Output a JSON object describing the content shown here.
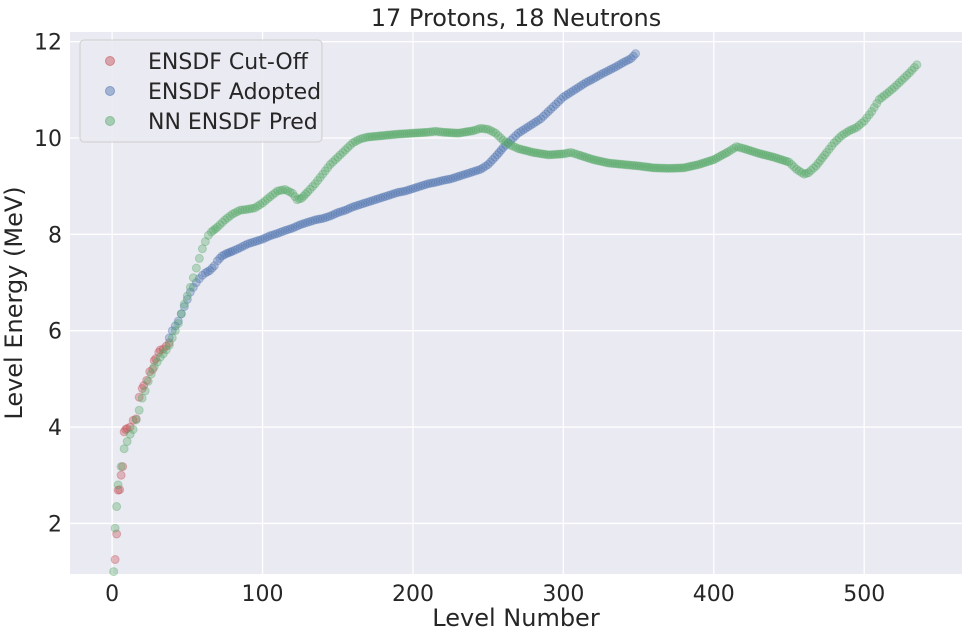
{
  "chart_data": {
    "type": "scatter",
    "title": "17 Protons, 18 Neutrons",
    "xlabel": "Level Number",
    "ylabel": "Level Energy (MeV)",
    "xlim": [
      -28,
      565
    ],
    "ylim": [
      0.95,
      12.2
    ],
    "xticks": [
      0,
      100,
      200,
      300,
      400,
      500
    ],
    "yticks": [
      2,
      4,
      6,
      8,
      10,
      12
    ],
    "grid": true,
    "legend_position": "top-left",
    "background": "#eaeaf2",
    "series": [
      {
        "name": "ENSDF Cut-Off",
        "color": "#c44e52",
        "points": [
          [
            2,
            1.25
          ],
          [
            3,
            1.78
          ],
          [
            4,
            2.69
          ],
          [
            5,
            2.7
          ],
          [
            6,
            3.0
          ],
          [
            7,
            3.18
          ],
          [
            8,
            3.9
          ],
          [
            9,
            3.95
          ],
          [
            10,
            3.97
          ],
          [
            12,
            4.0
          ],
          [
            14,
            4.14
          ],
          [
            16,
            4.17
          ],
          [
            18,
            4.62
          ],
          [
            20,
            4.8
          ],
          [
            21,
            4.86
          ],
          [
            23,
            4.97
          ],
          [
            25,
            5.15
          ],
          [
            27,
            5.2
          ],
          [
            28,
            5.38
          ],
          [
            29,
            5.42
          ],
          [
            31,
            5.55
          ],
          [
            32,
            5.6
          ],
          [
            34,
            5.62
          ],
          [
            36,
            5.68
          ],
          [
            38,
            5.75
          ]
        ]
      },
      {
        "name": "ENSDF Adopted",
        "color": "#4c72b0",
        "points": [
          [
            38,
            5.85
          ],
          [
            40,
            6.0
          ],
          [
            42,
            6.1
          ],
          [
            44,
            6.2
          ],
          [
            46,
            6.35
          ],
          [
            48,
            6.5
          ],
          [
            50,
            6.65
          ],
          [
            52,
            6.8
          ],
          [
            54,
            6.9
          ],
          [
            56,
            7.0
          ],
          [
            58,
            7.08
          ],
          [
            60,
            7.15
          ],
          [
            62,
            7.2
          ],
          [
            65,
            7.25
          ],
          [
            68,
            7.35
          ],
          [
            70,
            7.45
          ],
          [
            73,
            7.55
          ],
          [
            76,
            7.6
          ],
          [
            80,
            7.65
          ],
          [
            85,
            7.72
          ],
          [
            90,
            7.8
          ],
          [
            95,
            7.85
          ],
          [
            100,
            7.9
          ],
          [
            105,
            7.97
          ],
          [
            110,
            8.02
          ],
          [
            115,
            8.08
          ],
          [
            120,
            8.13
          ],
          [
            125,
            8.2
          ],
          [
            130,
            8.25
          ],
          [
            135,
            8.3
          ],
          [
            140,
            8.33
          ],
          [
            145,
            8.38
          ],
          [
            150,
            8.45
          ],
          [
            155,
            8.5
          ],
          [
            160,
            8.57
          ],
          [
            165,
            8.62
          ],
          [
            170,
            8.67
          ],
          [
            175,
            8.72
          ],
          [
            180,
            8.77
          ],
          [
            185,
            8.82
          ],
          [
            190,
            8.87
          ],
          [
            195,
            8.9
          ],
          [
            200,
            8.95
          ],
          [
            205,
            9.0
          ],
          [
            210,
            9.05
          ],
          [
            215,
            9.08
          ],
          [
            220,
            9.12
          ],
          [
            225,
            9.15
          ],
          [
            230,
            9.2
          ],
          [
            235,
            9.25
          ],
          [
            240,
            9.3
          ],
          [
            245,
            9.35
          ],
          [
            250,
            9.45
          ],
          [
            253,
            9.55
          ],
          [
            256,
            9.65
          ],
          [
            260,
            9.8
          ],
          [
            265,
            9.95
          ],
          [
            270,
            10.1
          ],
          [
            275,
            10.2
          ],
          [
            280,
            10.3
          ],
          [
            285,
            10.4
          ],
          [
            290,
            10.55
          ],
          [
            295,
            10.7
          ],
          [
            300,
            10.85
          ],
          [
            305,
            10.95
          ],
          [
            310,
            11.05
          ],
          [
            315,
            11.15
          ],
          [
            320,
            11.23
          ],
          [
            325,
            11.32
          ],
          [
            330,
            11.4
          ],
          [
            335,
            11.48
          ],
          [
            340,
            11.57
          ],
          [
            345,
            11.65
          ],
          [
            348,
            11.75
          ]
        ]
      },
      {
        "name": "NN ENSDF Pred",
        "color": "#55a868",
        "points": [
          [
            1,
            1.0
          ],
          [
            2,
            1.9
          ],
          [
            3,
            2.35
          ],
          [
            4,
            2.8
          ],
          [
            6,
            3.18
          ],
          [
            8,
            3.55
          ],
          [
            10,
            3.7
          ],
          [
            12,
            3.85
          ],
          [
            14,
            3.95
          ],
          [
            16,
            4.15
          ],
          [
            18,
            4.35
          ],
          [
            20,
            4.6
          ],
          [
            22,
            4.75
          ],
          [
            24,
            4.95
          ],
          [
            26,
            5.1
          ],
          [
            28,
            5.25
          ],
          [
            30,
            5.35
          ],
          [
            32,
            5.45
          ],
          [
            34,
            5.52
          ],
          [
            36,
            5.6
          ],
          [
            38,
            5.7
          ],
          [
            40,
            5.85
          ],
          [
            42,
            6.0
          ],
          [
            44,
            6.15
          ],
          [
            46,
            6.35
          ],
          [
            48,
            6.55
          ],
          [
            50,
            6.72
          ],
          [
            52,
            6.9
          ],
          [
            54,
            7.1
          ],
          [
            56,
            7.3
          ],
          [
            58,
            7.5
          ],
          [
            60,
            7.7
          ],
          [
            62,
            7.85
          ],
          [
            64,
            7.98
          ],
          [
            66,
            8.05
          ],
          [
            70,
            8.15
          ],
          [
            75,
            8.3
          ],
          [
            80,
            8.42
          ],
          [
            85,
            8.5
          ],
          [
            90,
            8.52
          ],
          [
            95,
            8.55
          ],
          [
            100,
            8.65
          ],
          [
            105,
            8.78
          ],
          [
            110,
            8.9
          ],
          [
            115,
            8.93
          ],
          [
            120,
            8.85
          ],
          [
            123,
            8.72
          ],
          [
            126,
            8.75
          ],
          [
            130,
            8.88
          ],
          [
            135,
            9.05
          ],
          [
            140,
            9.25
          ],
          [
            145,
            9.45
          ],
          [
            150,
            9.6
          ],
          [
            155,
            9.75
          ],
          [
            160,
            9.9
          ],
          [
            165,
            9.98
          ],
          [
            170,
            10.02
          ],
          [
            180,
            10.05
          ],
          [
            190,
            10.08
          ],
          [
            200,
            10.1
          ],
          [
            210,
            10.12
          ],
          [
            215,
            10.14
          ],
          [
            220,
            10.12
          ],
          [
            230,
            10.1
          ],
          [
            240,
            10.15
          ],
          [
            245,
            10.2
          ],
          [
            250,
            10.18
          ],
          [
            255,
            10.1
          ],
          [
            260,
            9.95
          ],
          [
            265,
            9.85
          ],
          [
            270,
            9.78
          ],
          [
            280,
            9.7
          ],
          [
            290,
            9.65
          ],
          [
            300,
            9.67
          ],
          [
            305,
            9.7
          ],
          [
            310,
            9.65
          ],
          [
            320,
            9.55
          ],
          [
            330,
            9.48
          ],
          [
            340,
            9.45
          ],
          [
            350,
            9.42
          ],
          [
            360,
            9.38
          ],
          [
            370,
            9.37
          ],
          [
            380,
            9.38
          ],
          [
            390,
            9.45
          ],
          [
            400,
            9.55
          ],
          [
            410,
            9.72
          ],
          [
            415,
            9.82
          ],
          [
            420,
            9.78
          ],
          [
            430,
            9.68
          ],
          [
            440,
            9.6
          ],
          [
            450,
            9.5
          ],
          [
            455,
            9.35
          ],
          [
            460,
            9.25
          ],
          [
            463,
            9.28
          ],
          [
            468,
            9.42
          ],
          [
            475,
            9.7
          ],
          [
            480,
            9.9
          ],
          [
            485,
            10.05
          ],
          [
            490,
            10.15
          ],
          [
            495,
            10.22
          ],
          [
            500,
            10.35
          ],
          [
            505,
            10.55
          ],
          [
            510,
            10.8
          ],
          [
            515,
            10.92
          ],
          [
            520,
            11.05
          ],
          [
            525,
            11.2
          ],
          [
            530,
            11.35
          ],
          [
            535,
            11.52
          ]
        ]
      }
    ]
  }
}
